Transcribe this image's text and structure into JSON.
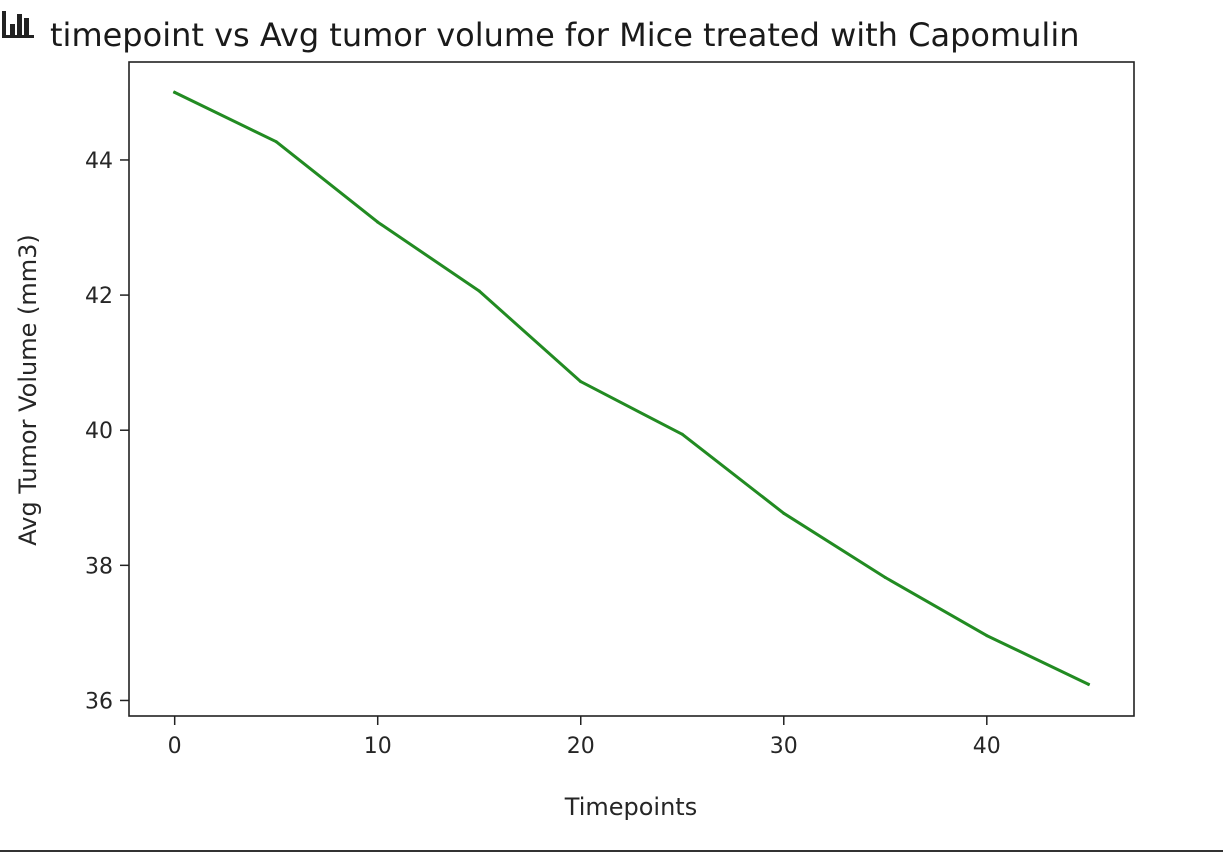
{
  "chart_data": {
    "type": "line",
    "title": "timepoint vs Avg tumor volume for Mice treated with Capomulin",
    "xlabel": "Timepoints",
    "ylabel": "Avg Tumor Volume (mm3)",
    "xlim": [
      -2.25,
      47.25
    ],
    "ylim": [
      35.77,
      45.45
    ],
    "xticks": [
      0,
      10,
      20,
      30,
      40
    ],
    "yticks": [
      36,
      38,
      40,
      42,
      44
    ],
    "grid": false,
    "series": [
      {
        "color": "#228b22",
        "x": [
          0,
          5,
          10,
          15,
          20,
          25,
          30,
          35,
          40,
          45
        ],
        "values": [
          45.0,
          44.27,
          43.08,
          42.06,
          40.72,
          39.94,
          38.77,
          37.82,
          36.96,
          36.24
        ]
      }
    ]
  },
  "icons": {
    "title_icon": "bar-chart-icon"
  }
}
